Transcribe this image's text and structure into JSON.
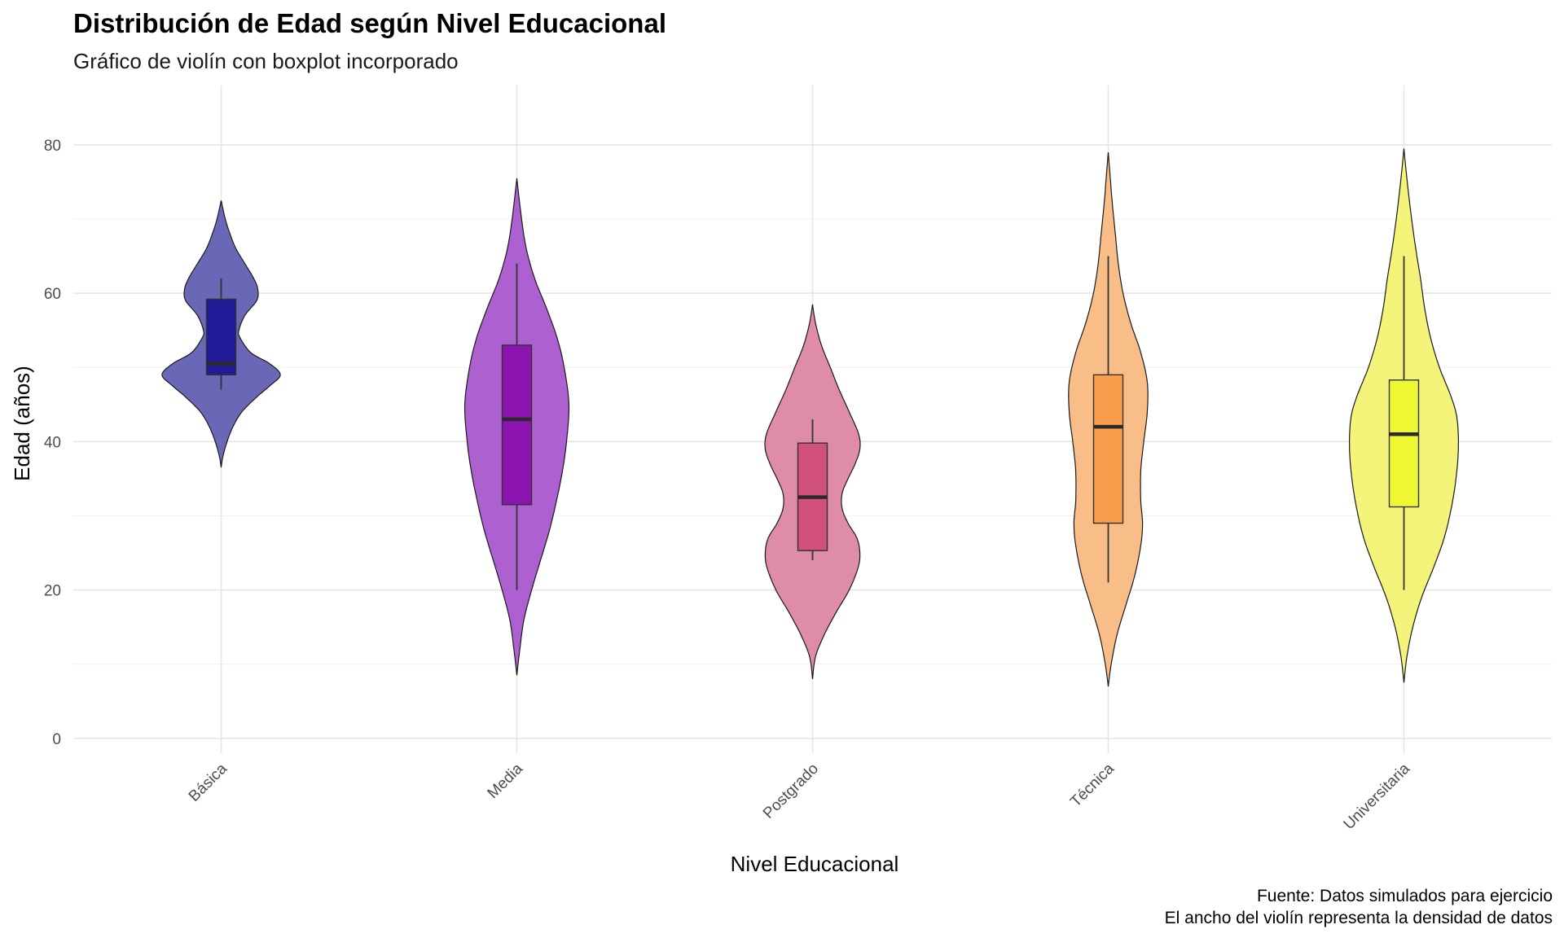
{
  "title": "Distribución de Edad según Nivel Educacional",
  "subtitle": "Gráfico de violín con boxplot incorporado",
  "caption": {
    "line1": "Fuente: Datos simulados para ejercicio",
    "line2": "El ancho del violín representa la densidad de datos"
  },
  "chart_data": {
    "type": "violin",
    "xlabel": "Nivel Educacional",
    "ylabel": "Edad (años)",
    "ylim": [
      -2,
      88
    ],
    "yticks": [
      0,
      20,
      40,
      60,
      80
    ],
    "grid": true,
    "legend": "none",
    "categories": [
      "Básica",
      "Media",
      "Postgrado",
      "Técnica",
      "Universitaria"
    ],
    "groups": [
      {
        "category": "Básica",
        "violin_color": "#6a68b6",
        "box_color": "#201a96",
        "min": 47,
        "q1": 49,
        "median": 50.5,
        "q3": 59.2,
        "max": 62,
        "density_range": [
          36.5,
          72.5
        ],
        "density": [
          [
            36.5,
            0
          ],
          [
            38,
            0.03
          ],
          [
            40,
            0.1
          ],
          [
            42,
            0.2
          ],
          [
            44,
            0.35
          ],
          [
            46,
            0.6
          ],
          [
            47.5,
            0.82
          ],
          [
            49,
            1
          ],
          [
            50.5,
            0.82
          ],
          [
            52,
            0.5
          ],
          [
            54,
            0.32
          ],
          [
            55,
            0.3
          ],
          [
            57,
            0.4
          ],
          [
            59,
            0.6
          ],
          [
            60.5,
            0.62
          ],
          [
            62,
            0.55
          ],
          [
            64,
            0.4
          ],
          [
            66,
            0.25
          ],
          [
            68,
            0.15
          ],
          [
            70,
            0.07
          ],
          [
            72.5,
            0
          ]
        ]
      },
      {
        "category": "Media",
        "violin_color": "#ad60cf",
        "box_color": "#8b14b1",
        "min": 20,
        "q1": 31.5,
        "median": 43,
        "q3": 53,
        "max": 64,
        "density_range": [
          8.5,
          75.5
        ],
        "density": [
          [
            8.5,
            0
          ],
          [
            12,
            0.05
          ],
          [
            16,
            0.12
          ],
          [
            20,
            0.25
          ],
          [
            24,
            0.4
          ],
          [
            28,
            0.55
          ],
          [
            32,
            0.67
          ],
          [
            36,
            0.77
          ],
          [
            40,
            0.84
          ],
          [
            45,
            0.88
          ],
          [
            50,
            0.8
          ],
          [
            54,
            0.68
          ],
          [
            58,
            0.5
          ],
          [
            62,
            0.3
          ],
          [
            66,
            0.16
          ],
          [
            70,
            0.08
          ],
          [
            75.5,
            0
          ]
        ]
      },
      {
        "category": "Postgrado",
        "violin_color": "#df8caa",
        "box_color": "#d2507e",
        "min": 24,
        "q1": 25.3,
        "median": 32.5,
        "q3": 39.8,
        "max": 43,
        "density_range": [
          8,
          58.5
        ],
        "density": [
          [
            8,
            0
          ],
          [
            11,
            0.05
          ],
          [
            14,
            0.2
          ],
          [
            17,
            0.4
          ],
          [
            20,
            0.62
          ],
          [
            23,
            0.77
          ],
          [
            25,
            0.8
          ],
          [
            27,
            0.75
          ],
          [
            29,
            0.6
          ],
          [
            31,
            0.5
          ],
          [
            33,
            0.5
          ],
          [
            35,
            0.6
          ],
          [
            37,
            0.72
          ],
          [
            39,
            0.8
          ],
          [
            41,
            0.78
          ],
          [
            44,
            0.62
          ],
          [
            47,
            0.45
          ],
          [
            50,
            0.3
          ],
          [
            53,
            0.15
          ],
          [
            56,
            0.05
          ],
          [
            58.5,
            0
          ]
        ]
      },
      {
        "category": "Técnica",
        "violin_color": "#f9be88",
        "box_color": "#f99e4c",
        "min": 21,
        "q1": 29,
        "median": 42,
        "q3": 49,
        "max": 65,
        "density_range": [
          7,
          79
        ],
        "density": [
          [
            7,
            0
          ],
          [
            10,
            0.05
          ],
          [
            14,
            0.15
          ],
          [
            18,
            0.3
          ],
          [
            22,
            0.45
          ],
          [
            26,
            0.55
          ],
          [
            29,
            0.58
          ],
          [
            32,
            0.55
          ],
          [
            36,
            0.55
          ],
          [
            40,
            0.6
          ],
          [
            44,
            0.66
          ],
          [
            48,
            0.66
          ],
          [
            52,
            0.55
          ],
          [
            56,
            0.38
          ],
          [
            60,
            0.25
          ],
          [
            64,
            0.17
          ],
          [
            68,
            0.12
          ],
          [
            72,
            0.07
          ],
          [
            76,
            0.03
          ],
          [
            79,
            0
          ]
        ]
      },
      {
        "category": "Universitaria",
        "violin_color": "#f4f37a",
        "box_color": "#eff632",
        "min": 20,
        "q1": 31.2,
        "median": 41,
        "q3": 48.3,
        "max": 65,
        "density_range": [
          7.5,
          79.5
        ],
        "density": [
          [
            7.5,
            0
          ],
          [
            11,
            0.05
          ],
          [
            15,
            0.15
          ],
          [
            19,
            0.3
          ],
          [
            23,
            0.5
          ],
          [
            27,
            0.68
          ],
          [
            31,
            0.8
          ],
          [
            35,
            0.88
          ],
          [
            39,
            0.92
          ],
          [
            43,
            0.9
          ],
          [
            46,
            0.8
          ],
          [
            50,
            0.6
          ],
          [
            54,
            0.45
          ],
          [
            58,
            0.35
          ],
          [
            62,
            0.28
          ],
          [
            66,
            0.2
          ],
          [
            70,
            0.13
          ],
          [
            74,
            0.07
          ],
          [
            77,
            0.03
          ],
          [
            79.5,
            0
          ]
        ]
      }
    ]
  }
}
